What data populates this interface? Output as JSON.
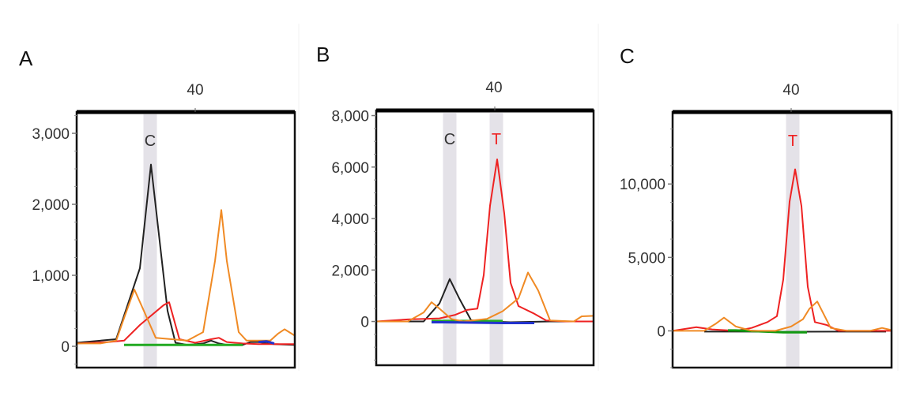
{
  "chart_data": [
    {
      "type": "line",
      "panel_label": "A",
      "top_tick_label": "40",
      "x_range": [
        25,
        52.6
      ],
      "ylim": [
        -300,
        3300
      ],
      "yticks": [
        0,
        1000,
        2000,
        3000
      ],
      "ytick_labels": [
        "0",
        "1,000",
        "2,000",
        "3,000"
      ],
      "base_calls": [
        {
          "label": "C",
          "position": 34.3,
          "color": "#333333"
        }
      ],
      "series": [
        {
          "name": "C (black)",
          "color": "#222222",
          "x": [
            25,
            30,
            33,
            34.4,
            36.5,
            37.5,
            39,
            41,
            42,
            43,
            44,
            46,
            47,
            48,
            49,
            50,
            52.6
          ],
          "y": [
            50,
            100,
            1100,
            2560,
            500,
            50,
            20,
            40,
            80,
            40,
            20,
            20,
            60,
            60,
            40,
            30,
            20
          ]
        },
        {
          "name": "T (red)",
          "color": "#ee2222",
          "x": [
            25,
            29,
            31,
            33,
            36,
            36.7,
            38,
            40,
            42,
            43,
            44,
            46,
            48,
            50,
            52.6
          ],
          "y": [
            40,
            60,
            80,
            300,
            580,
            620,
            100,
            50,
            100,
            120,
            60,
            40,
            30,
            30,
            30
          ]
        },
        {
          "name": "A (green)",
          "color": "#22aa22",
          "x": [
            31,
            35,
            38,
            41,
            44,
            46
          ],
          "y": [
            20,
            20,
            20,
            20,
            20,
            20
          ]
        },
        {
          "name": "G (orange)",
          "color": "#f08a24",
          "x": [
            25,
            28,
            30,
            31,
            32.3,
            33.5,
            35,
            37,
            39,
            41,
            42.5,
            43.3,
            44,
            45.5,
            46.5,
            48,
            49.5,
            50.5,
            51.3,
            52.6
          ],
          "y": [
            40,
            40,
            80,
            400,
            800,
            500,
            120,
            100,
            80,
            200,
            1200,
            1920,
            1200,
            200,
            80,
            80,
            80,
            180,
            240,
            150
          ]
        },
        {
          "name": "blue",
          "color": "#2233cc",
          "x": [
            48,
            49,
            50
          ],
          "y": [
            60,
            70,
            40
          ]
        }
      ]
    },
    {
      "type": "line",
      "panel_label": "B",
      "top_tick_label": "40",
      "x_range": [
        25,
        52.5
      ],
      "ylim": [
        -1700,
        8200
      ],
      "yticks": [
        0,
        2000,
        4000,
        6000,
        8000
      ],
      "ytick_labels": [
        "0",
        "2,000",
        "4,000",
        "6,000",
        "8,000"
      ],
      "base_calls": [
        {
          "label": "C",
          "position": 34.3,
          "color": "#333333"
        },
        {
          "label": "T",
          "position": 40.2,
          "color": "#ee2222"
        }
      ],
      "series": [
        {
          "name": "C (black)",
          "color": "#222222",
          "x": [
            25,
            31,
            33,
            34.3,
            35.5,
            37,
            39,
            42,
            47,
            52.5
          ],
          "y": [
            0,
            0,
            700,
            1650,
            900,
            50,
            0,
            -30,
            0,
            0
          ]
        },
        {
          "name": "T (red)",
          "color": "#ee2222",
          "x": [
            25,
            29,
            31,
            33,
            35,
            36.5,
            37.8,
            38.6,
            39.4,
            40.3,
            41.2,
            42,
            43,
            45,
            46.5,
            49,
            52.5
          ],
          "y": [
            0,
            80,
            100,
            120,
            260,
            450,
            500,
            1800,
            4500,
            6300,
            4200,
            1500,
            600,
            300,
            40,
            0,
            0
          ]
        },
        {
          "name": "A (green)",
          "color": "#22aa22",
          "x": [
            32,
            35,
            39,
            41
          ],
          "y": [
            20,
            20,
            20,
            20
          ]
        },
        {
          "name": "G (orange)",
          "color": "#f08a24",
          "x": [
            25,
            29,
            31,
            32,
            33,
            34.5,
            36,
            39,
            41,
            43,
            44.2,
            45.5,
            47,
            50,
            51,
            52.5
          ],
          "y": [
            0,
            0,
            350,
            750,
            500,
            100,
            0,
            100,
            400,
            900,
            1900,
            1200,
            40,
            0,
            200,
            220
          ]
        },
        {
          "name": "blue",
          "color": "#2233cc",
          "x": [
            32,
            33.5,
            41,
            42,
            43,
            45
          ],
          "y": [
            -30,
            -30,
            -60,
            -60,
            -60,
            -60
          ]
        }
      ]
    },
    {
      "type": "line",
      "panel_label": "C",
      "top_tick_label": "40",
      "x_range": [
        25,
        52.7
      ],
      "ylim": [
        -2500,
        14900
      ],
      "yticks": [
        0,
        5000,
        10000
      ],
      "ytick_labels": [
        "0",
        "5,000",
        "10,000"
      ],
      "base_calls": [
        {
          "label": "T",
          "position": 40.2,
          "color": "#ee2222"
        }
      ],
      "series": [
        {
          "name": "C (black)",
          "color": "#222222",
          "x": [
            29,
            35,
            40,
            46,
            52
          ],
          "y": [
            -50,
            -50,
            -60,
            -50,
            -50
          ]
        },
        {
          "name": "T (red)",
          "color": "#ee2222",
          "x": [
            25,
            28,
            30,
            33,
            35,
            37,
            38.2,
            39,
            39.8,
            40.5,
            41.3,
            42.1,
            43,
            44.5,
            46,
            52.7
          ],
          "y": [
            0,
            250,
            100,
            0,
            200,
            600,
            1000,
            3500,
            8800,
            11000,
            8500,
            3000,
            600,
            400,
            0,
            0
          ]
        },
        {
          "name": "A (green)",
          "color": "#119911",
          "x": [
            32,
            33,
            39,
            42
          ],
          "y": [
            30,
            30,
            -100,
            -100
          ]
        },
        {
          "name": "G (orange)",
          "color": "#f08a24",
          "x": [
            25,
            29,
            30.5,
            31.5,
            33,
            35,
            38,
            40,
            41.5,
            42.3,
            43.3,
            45,
            47,
            50,
            51.5,
            52.7
          ],
          "y": [
            0,
            0,
            500,
            900,
            300,
            0,
            0,
            300,
            800,
            1500,
            2000,
            200,
            0,
            0,
            200,
            50
          ]
        }
      ]
    }
  ]
}
